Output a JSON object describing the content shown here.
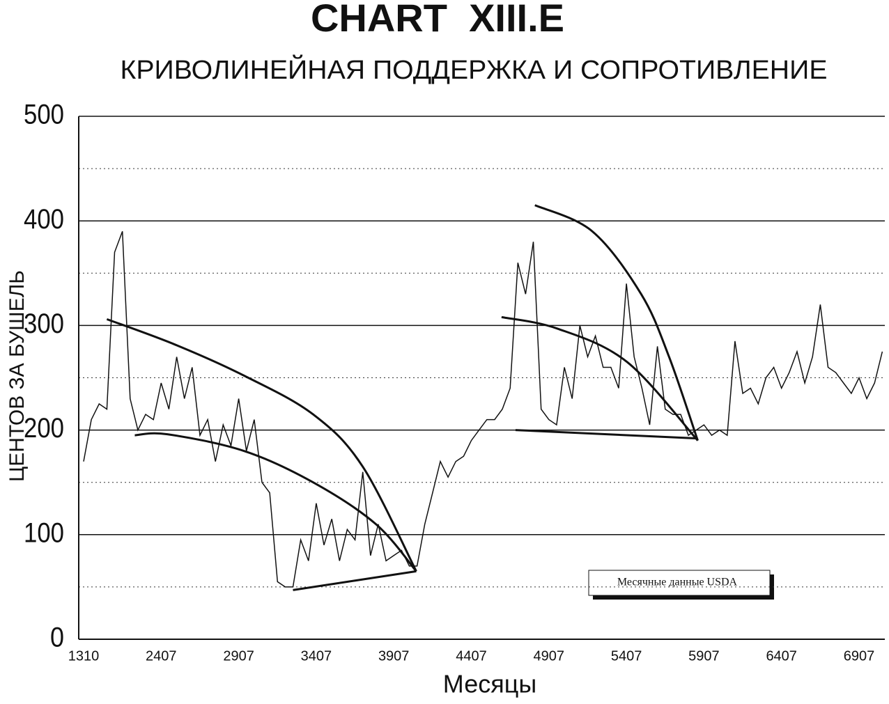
{
  "chart_data": {
    "type": "line",
    "title": "CHART  XIII.E",
    "subtitle": "КРИВОЛИНЕЙНАЯ ПОДДЕРЖКА И СОПРОТИВЛЕНИЕ",
    "y_label": "ЦЕНТОВ ЗА БУШЕЛЬ",
    "x_label": "Месяцы",
    "annotation": "Месячные данные USDA",
    "color": "#111111",
    "categories": [
      "1310",
      null,
      null,
      null,
      null,
      null,
      null,
      null,
      null,
      null,
      "2407",
      null,
      null,
      null,
      null,
      null,
      null,
      null,
      null,
      null,
      "2907",
      null,
      null,
      null,
      null,
      null,
      null,
      null,
      null,
      null,
      "3407",
      null,
      null,
      null,
      null,
      null,
      null,
      null,
      null,
      null,
      "3907",
      null,
      null,
      null,
      null,
      null,
      null,
      null,
      null,
      null,
      "4407",
      null,
      null,
      null,
      null,
      null,
      null,
      null,
      null,
      null,
      "4907",
      null,
      null,
      null,
      null,
      null,
      null,
      null,
      null,
      null,
      "5407",
      null,
      null,
      null,
      null,
      null,
      null,
      null,
      null,
      null,
      "5907",
      null,
      null,
      null,
      null,
      null,
      null,
      null,
      null,
      null,
      "6407",
      null,
      null,
      null,
      null,
      null,
      null,
      null,
      null,
      null,
      "6907",
      null,
      null,
      null
    ],
    "values": [
      170,
      210,
      225,
      220,
      370,
      390,
      230,
      200,
      215,
      210,
      245,
      220,
      270,
      230,
      260,
      195,
      210,
      170,
      205,
      185,
      230,
      180,
      210,
      150,
      140,
      55,
      50,
      50,
      95,
      75,
      130,
      90,
      115,
      75,
      105,
      95,
      160,
      80,
      110,
      75,
      80,
      85,
      70,
      70,
      110,
      140,
      170,
      155,
      170,
      175,
      190,
      200,
      210,
      210,
      220,
      240,
      360,
      330,
      380,
      220,
      210,
      205,
      260,
      230,
      300,
      270,
      290,
      260,
      260,
      240,
      340,
      270,
      240,
      205,
      280,
      220,
      215,
      215,
      195,
      200,
      205,
      195,
      200,
      195,
      285,
      235,
      240,
      225,
      250,
      260,
      240,
      255,
      275,
      245,
      270,
      320,
      260,
      255,
      245,
      235,
      250,
      230,
      245,
      275
    ],
    "trend_lines": [
      {
        "x": [
          3,
          11.7,
          20.7,
          29.6,
          36,
          42.9
        ],
        "y": [
          306,
          282,
          252,
          215,
          165,
          65
        ]
      },
      {
        "x": [
          6.6,
          10.8,
          20.7,
          29.6,
          37.7,
          42.9
        ],
        "y": [
          195,
          196,
          180,
          150,
          110,
          65
        ]
      },
      {
        "x": [
          27,
          42.9
        ],
        "y": [
          47,
          65
        ]
      },
      {
        "x": [
          58.2,
          65.6,
          71.9,
          75.5,
          79.2
        ],
        "y": [
          415,
          390,
          330,
          270,
          190
        ]
      },
      {
        "x": [
          53.9,
          61.1,
          70.1,
          79.2
        ],
        "y": [
          308,
          297,
          265,
          190
        ]
      },
      {
        "x": [
          55.7,
          79.2
        ],
        "y": [
          200,
          192
        ]
      }
    ],
    "ylim": [
      0,
      500
    ],
    "yticks": [
      0,
      100,
      200,
      300,
      400,
      500
    ],
    "minor_yticks": [
      50,
      150,
      250,
      350,
      450
    ],
    "grid": true
  }
}
